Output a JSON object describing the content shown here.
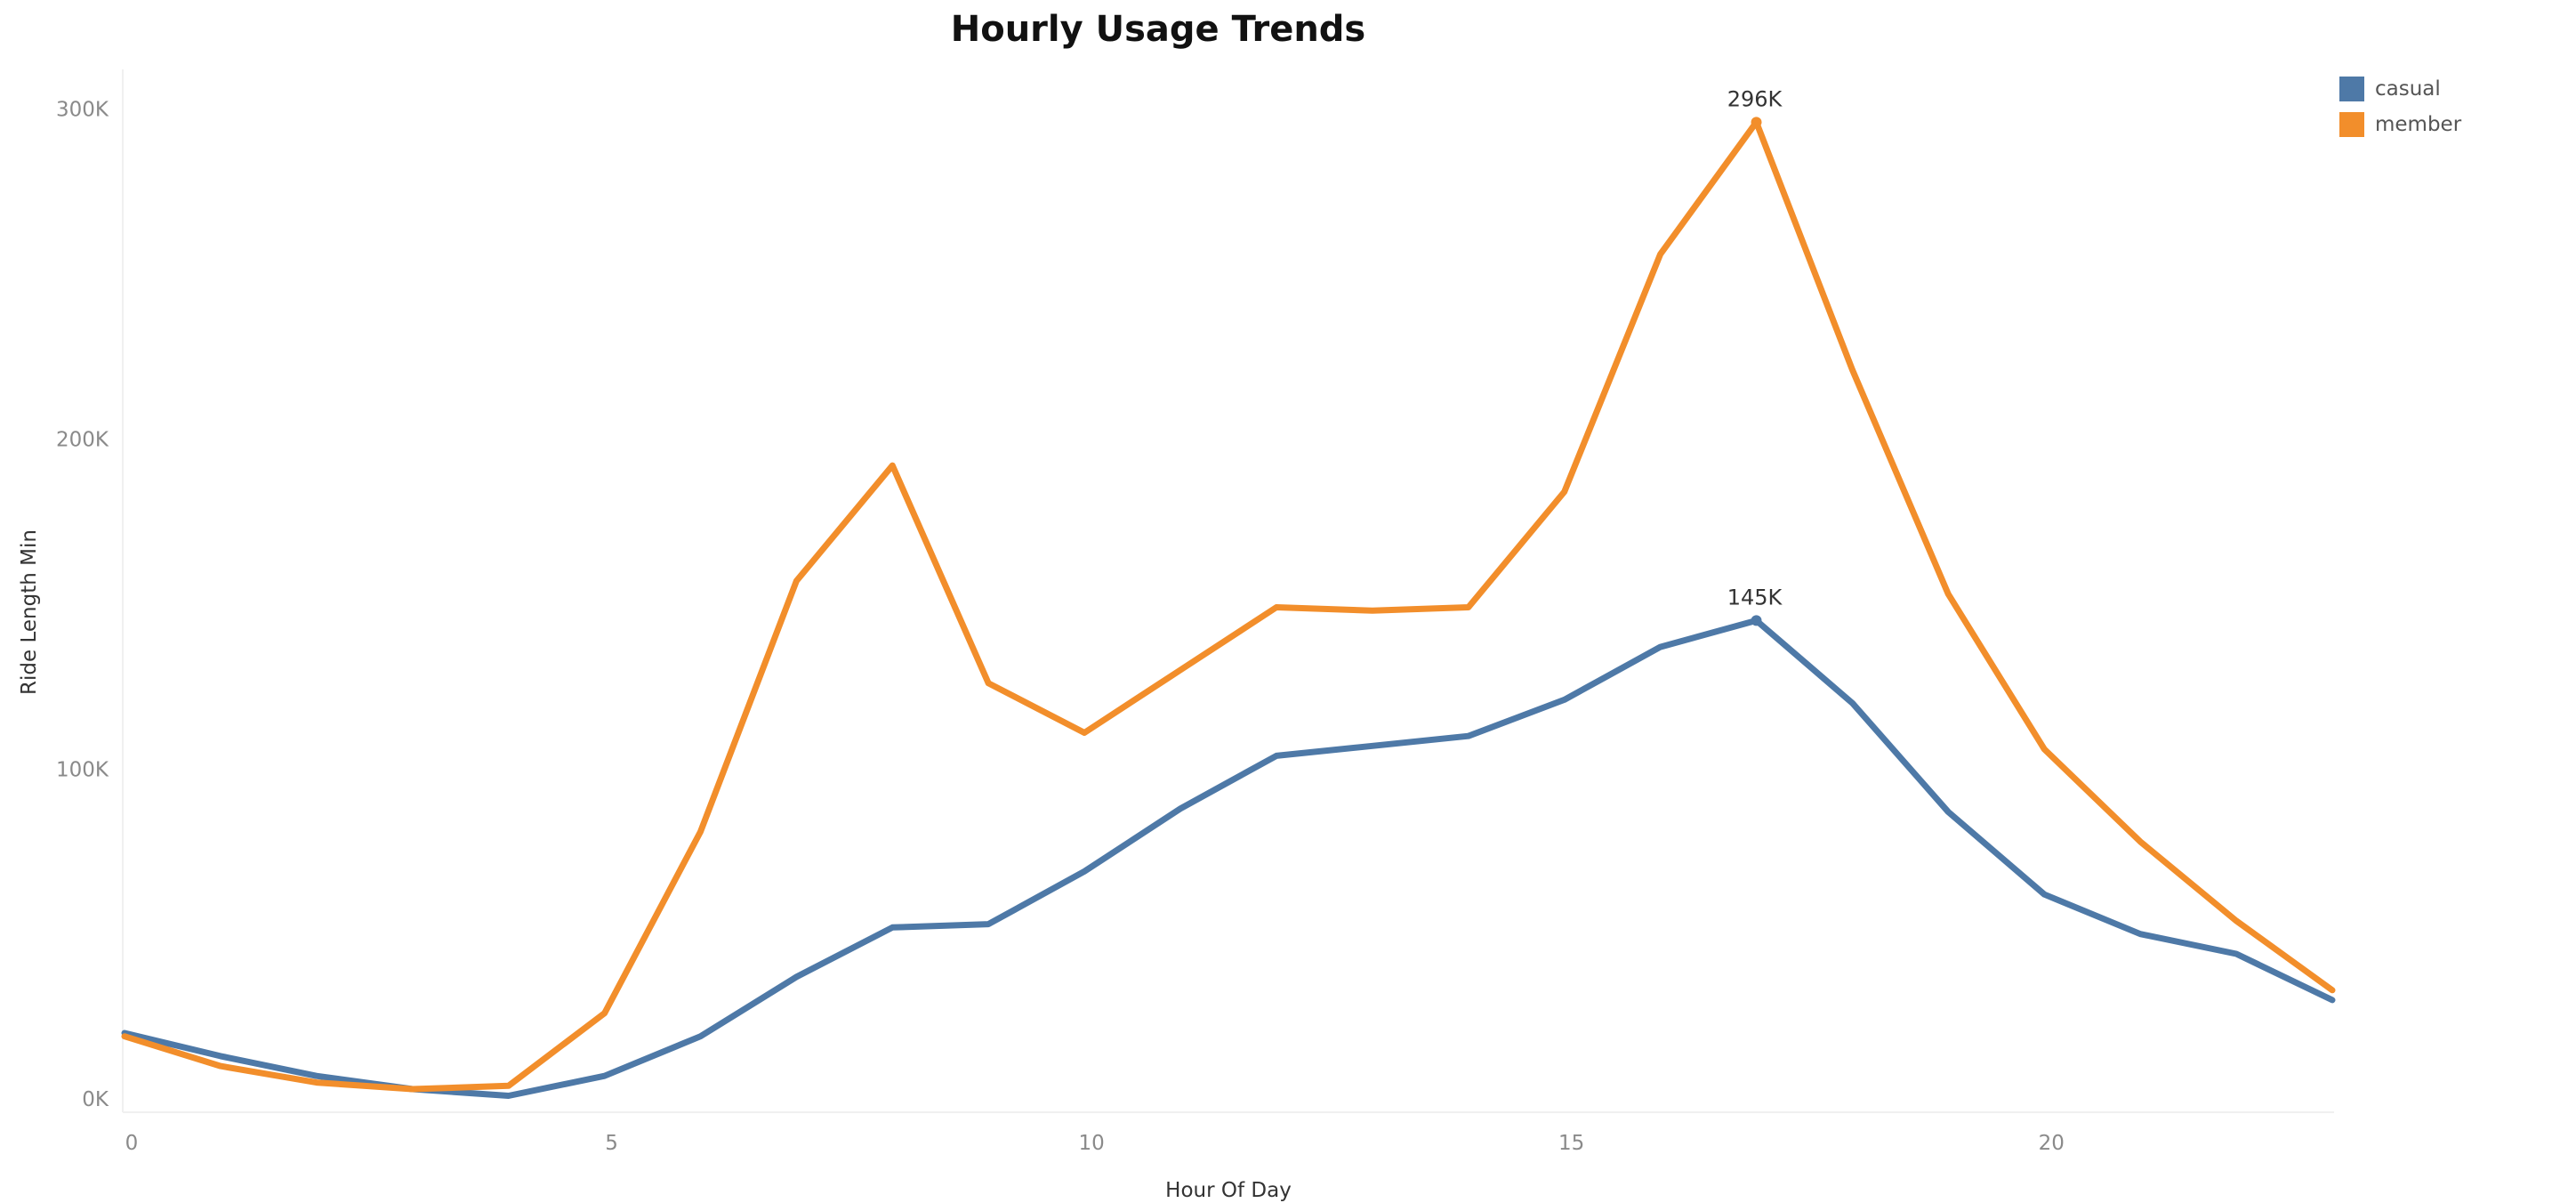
{
  "chart_data": {
    "type": "line",
    "title": "Hourly Usage Trends",
    "xlabel": "Hour Of Day",
    "ylabel": "Ride Length Min",
    "x": [
      0,
      1,
      2,
      3,
      4,
      5,
      6,
      7,
      8,
      9,
      10,
      11,
      12,
      13,
      14,
      15,
      16,
      17,
      18,
      19,
      20,
      21,
      22,
      23
    ],
    "xlim": [
      0,
      23
    ],
    "ylim": [
      -4000,
      312000
    ],
    "x_ticks": [
      0,
      5,
      10,
      15,
      20
    ],
    "x_tick_labels": [
      "0",
      "5",
      "10",
      "15",
      "20"
    ],
    "y_ticks": [
      0,
      100000,
      200000,
      300000
    ],
    "y_tick_labels": [
      "0K",
      "100K",
      "200K",
      "300K"
    ],
    "grid": false,
    "legend_position": "top-right",
    "series": [
      {
        "name": "casual",
        "color": "#4e79a7",
        "values": [
          20000,
          13000,
          7000,
          3000,
          1000,
          7000,
          19000,
          37000,
          52000,
          53000,
          69000,
          88000,
          104000,
          107000,
          110000,
          121000,
          137000,
          145000,
          120000,
          87000,
          62000,
          50000,
          44000,
          30000
        ],
        "annotation": {
          "x": 17,
          "y": 145000,
          "label": "145K"
        }
      },
      {
        "name": "member",
        "color": "#f28e2b",
        "values": [
          19000,
          10000,
          5000,
          3000,
          4000,
          26000,
          81000,
          157000,
          192000,
          126000,
          111000,
          130000,
          149000,
          148000,
          149000,
          184000,
          256000,
          296000,
          221000,
          153000,
          106000,
          78000,
          54000,
          33000
        ],
        "annotation": {
          "x": 17,
          "y": 296000,
          "label": "296K"
        }
      }
    ]
  }
}
